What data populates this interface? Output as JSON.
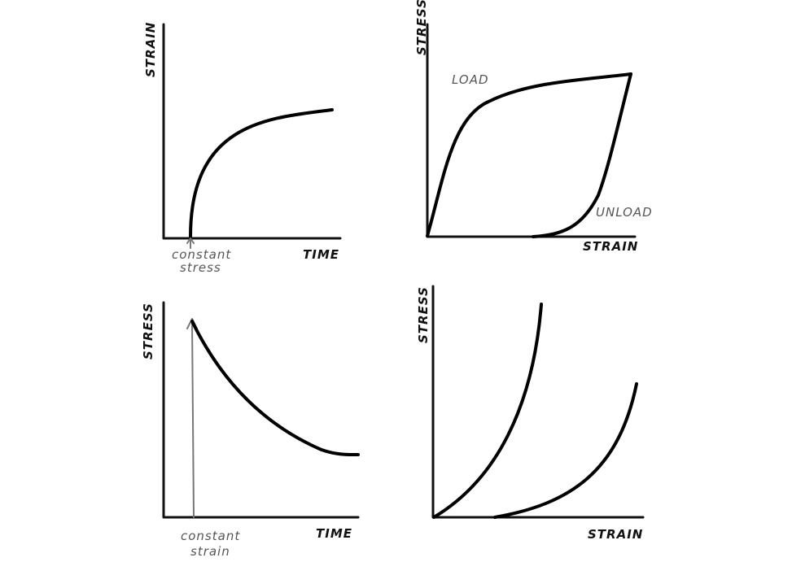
{
  "panels": {
    "creep": {
      "ylabel": "STRAIN",
      "xlabel": "TIME",
      "annotation_line1": "constant",
      "annotation_line2": "stress"
    },
    "hysteresis": {
      "ylabel": "STRESS",
      "xlabel": "STRAIN",
      "load_label": "LOAD",
      "unload_label": "UNLOAD"
    },
    "relaxation": {
      "ylabel": "STRESS",
      "xlabel": "TIME",
      "annotation_line1": "constant",
      "annotation_line2": "strain"
    },
    "stress_strain": {
      "ylabel": "STRESS",
      "xlabel": "STRAIN"
    }
  },
  "colors": {
    "curve": "#000000",
    "annotation": "#777777"
  }
}
